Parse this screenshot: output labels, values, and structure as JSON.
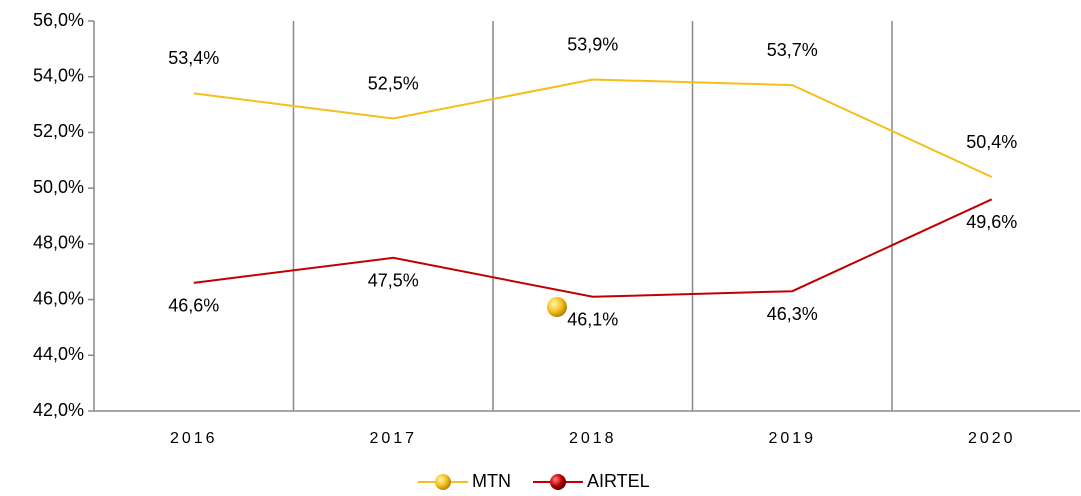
{
  "chart_data": {
    "type": "line",
    "categories": [
      "2016",
      "2017",
      "2018",
      "2019",
      "2020"
    ],
    "series": [
      {
        "name": "MTN",
        "color": "#f5bf1a",
        "values": [
          53.4,
          52.5,
          53.9,
          53.7,
          50.4
        ],
        "value_labels": [
          "53,4%",
          "52,5%",
          "53,9%",
          "53,7%",
          "50,4%"
        ]
      },
      {
        "name": "AIRTEL",
        "color": "#c00000",
        "values": [
          46.6,
          47.5,
          46.1,
          46.3,
          49.6
        ],
        "value_labels": [
          "46,6%",
          "47,5%",
          "46,1%",
          "46,3%",
          "49,6%"
        ]
      }
    ],
    "ylim": [
      42,
      56
    ],
    "yticks": [
      {
        "value": 42,
        "label": "42,0%"
      },
      {
        "value": 44,
        "label": "44,0%"
      },
      {
        "value": 46,
        "label": "46,0%"
      },
      {
        "value": 48,
        "label": "48,0%"
      },
      {
        "value": 50,
        "label": "50,0%"
      },
      {
        "value": 52,
        "label": "52,0%"
      },
      {
        "value": 54,
        "label": "54,0%"
      },
      {
        "value": 56,
        "label": "56,0%"
      }
    ],
    "legend": "bottom"
  }
}
